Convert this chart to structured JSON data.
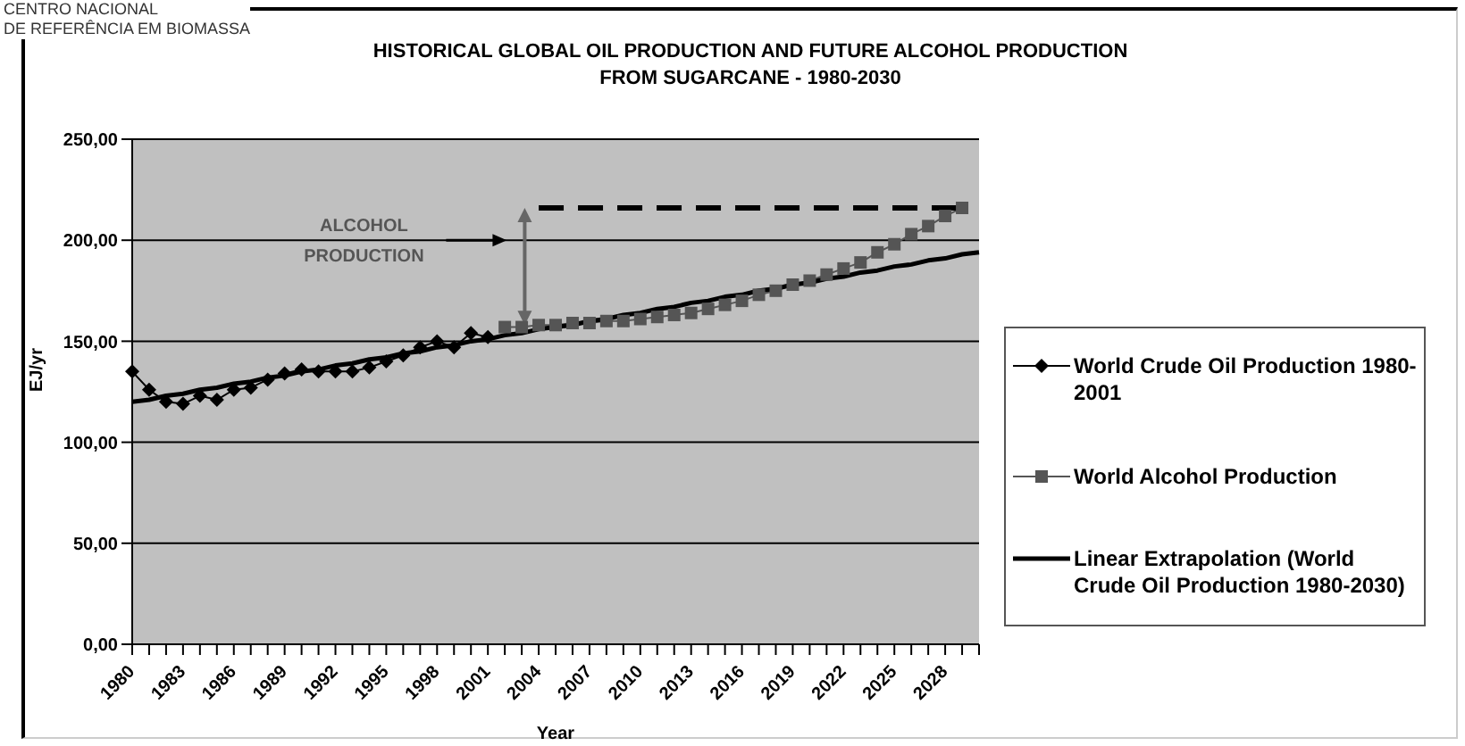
{
  "chart_data": {
    "type": "line",
    "title": "HISTORICAL GLOBAL OIL PRODUCTION AND FUTURE ALCOHOL PRODUCTION\nFROM SUGARCANE - 1980-2030",
    "xlabel": "Year",
    "ylabel": "EJ/yr",
    "annotations": [
      "CENTRO NACIONAL",
      "DE REFERÊNCIA EM BIOMASSA",
      "ALCOHOL\nPRODUCTION"
    ],
    "categories": [
      "1980",
      null,
      null,
      "1983",
      null,
      null,
      "1986",
      null,
      null,
      "1989",
      null,
      null,
      "1992",
      null,
      null,
      "1995",
      null,
      null,
      "1998",
      null,
      null,
      "2001",
      null,
      null,
      "2004",
      null,
      null,
      "2007",
      null,
      null,
      "2010",
      null,
      null,
      "2013",
      null,
      null,
      "2016",
      null,
      null,
      "2019",
      null,
      null,
      "2022",
      null,
      null,
      "2025",
      null,
      null,
      "2028",
      null,
      null
    ],
    "ylim": [
      0,
      250
    ],
    "yticks": [
      {
        "value": 0,
        "label": "0,00"
      },
      {
        "value": 50,
        "label": "50,00"
      },
      {
        "value": 100,
        "label": "100,00"
      },
      {
        "value": 150,
        "label": "150,00"
      },
      {
        "value": 200,
        "label": "200,00"
      },
      {
        "value": 250,
        "label": "250,00"
      }
    ],
    "grid": "y",
    "legend": "right",
    "series": [
      {
        "name": "World Crude Oil Production 1980-2001",
        "color": "#000000",
        "marker": "diamond",
        "values": [
          135,
          126,
          120,
          119,
          123,
          121,
          126,
          127,
          131,
          134,
          136,
          135,
          135,
          135,
          137,
          140,
          143,
          147,
          150,
          147,
          154,
          152,
          null,
          null,
          null,
          null,
          null,
          null,
          null,
          null,
          null,
          null,
          null,
          null,
          null,
          null,
          null,
          null,
          null,
          null,
          null,
          null,
          null,
          null,
          null,
          null,
          null,
          null,
          null,
          null,
          null
        ]
      },
      {
        "name": "World Alcohol Production",
        "color": "#555555",
        "marker": "square",
        "values": [
          null,
          null,
          null,
          null,
          null,
          null,
          null,
          null,
          null,
          null,
          null,
          null,
          null,
          null,
          null,
          null,
          null,
          null,
          null,
          null,
          null,
          null,
          157,
          157,
          158,
          158,
          159,
          159,
          160,
          160,
          161,
          162,
          163,
          164,
          166,
          168,
          170,
          173,
          175,
          178,
          180,
          183,
          186,
          189,
          194,
          198,
          203,
          207,
          212,
          216,
          null
        ]
      },
      {
        "name": "Linear Extrapolation (World Crude Oil Production 1980-2030)",
        "color": "#000000",
        "marker": "none",
        "values": [
          120,
          121,
          123,
          124,
          126,
          127,
          129,
          130,
          132,
          133,
          135,
          136,
          138,
          139,
          141,
          142,
          144,
          145,
          147,
          148,
          150,
          151,
          153,
          154,
          156,
          157,
          158,
          160,
          161,
          163,
          164,
          166,
          167,
          169,
          170,
          172,
          173,
          175,
          176,
          178,
          179,
          181,
          182,
          184,
          185,
          187,
          188,
          190,
          191,
          193,
          194
        ]
      },
      {
        "color": "#000000",
        "marker": "none",
        "line_style": "dashed",
        "values": [
          null,
          null,
          null,
          null,
          null,
          null,
          null,
          null,
          null,
          null,
          null,
          null,
          null,
          null,
          null,
          null,
          null,
          null,
          null,
          null,
          null,
          null,
          null,
          null,
          216,
          216,
          216,
          216,
          216,
          216,
          216,
          216,
          216,
          216,
          216,
          216,
          216,
          216,
          216,
          216,
          216,
          216,
          216,
          216,
          216,
          216,
          216,
          216,
          216,
          216,
          null
        ]
      }
    ]
  }
}
